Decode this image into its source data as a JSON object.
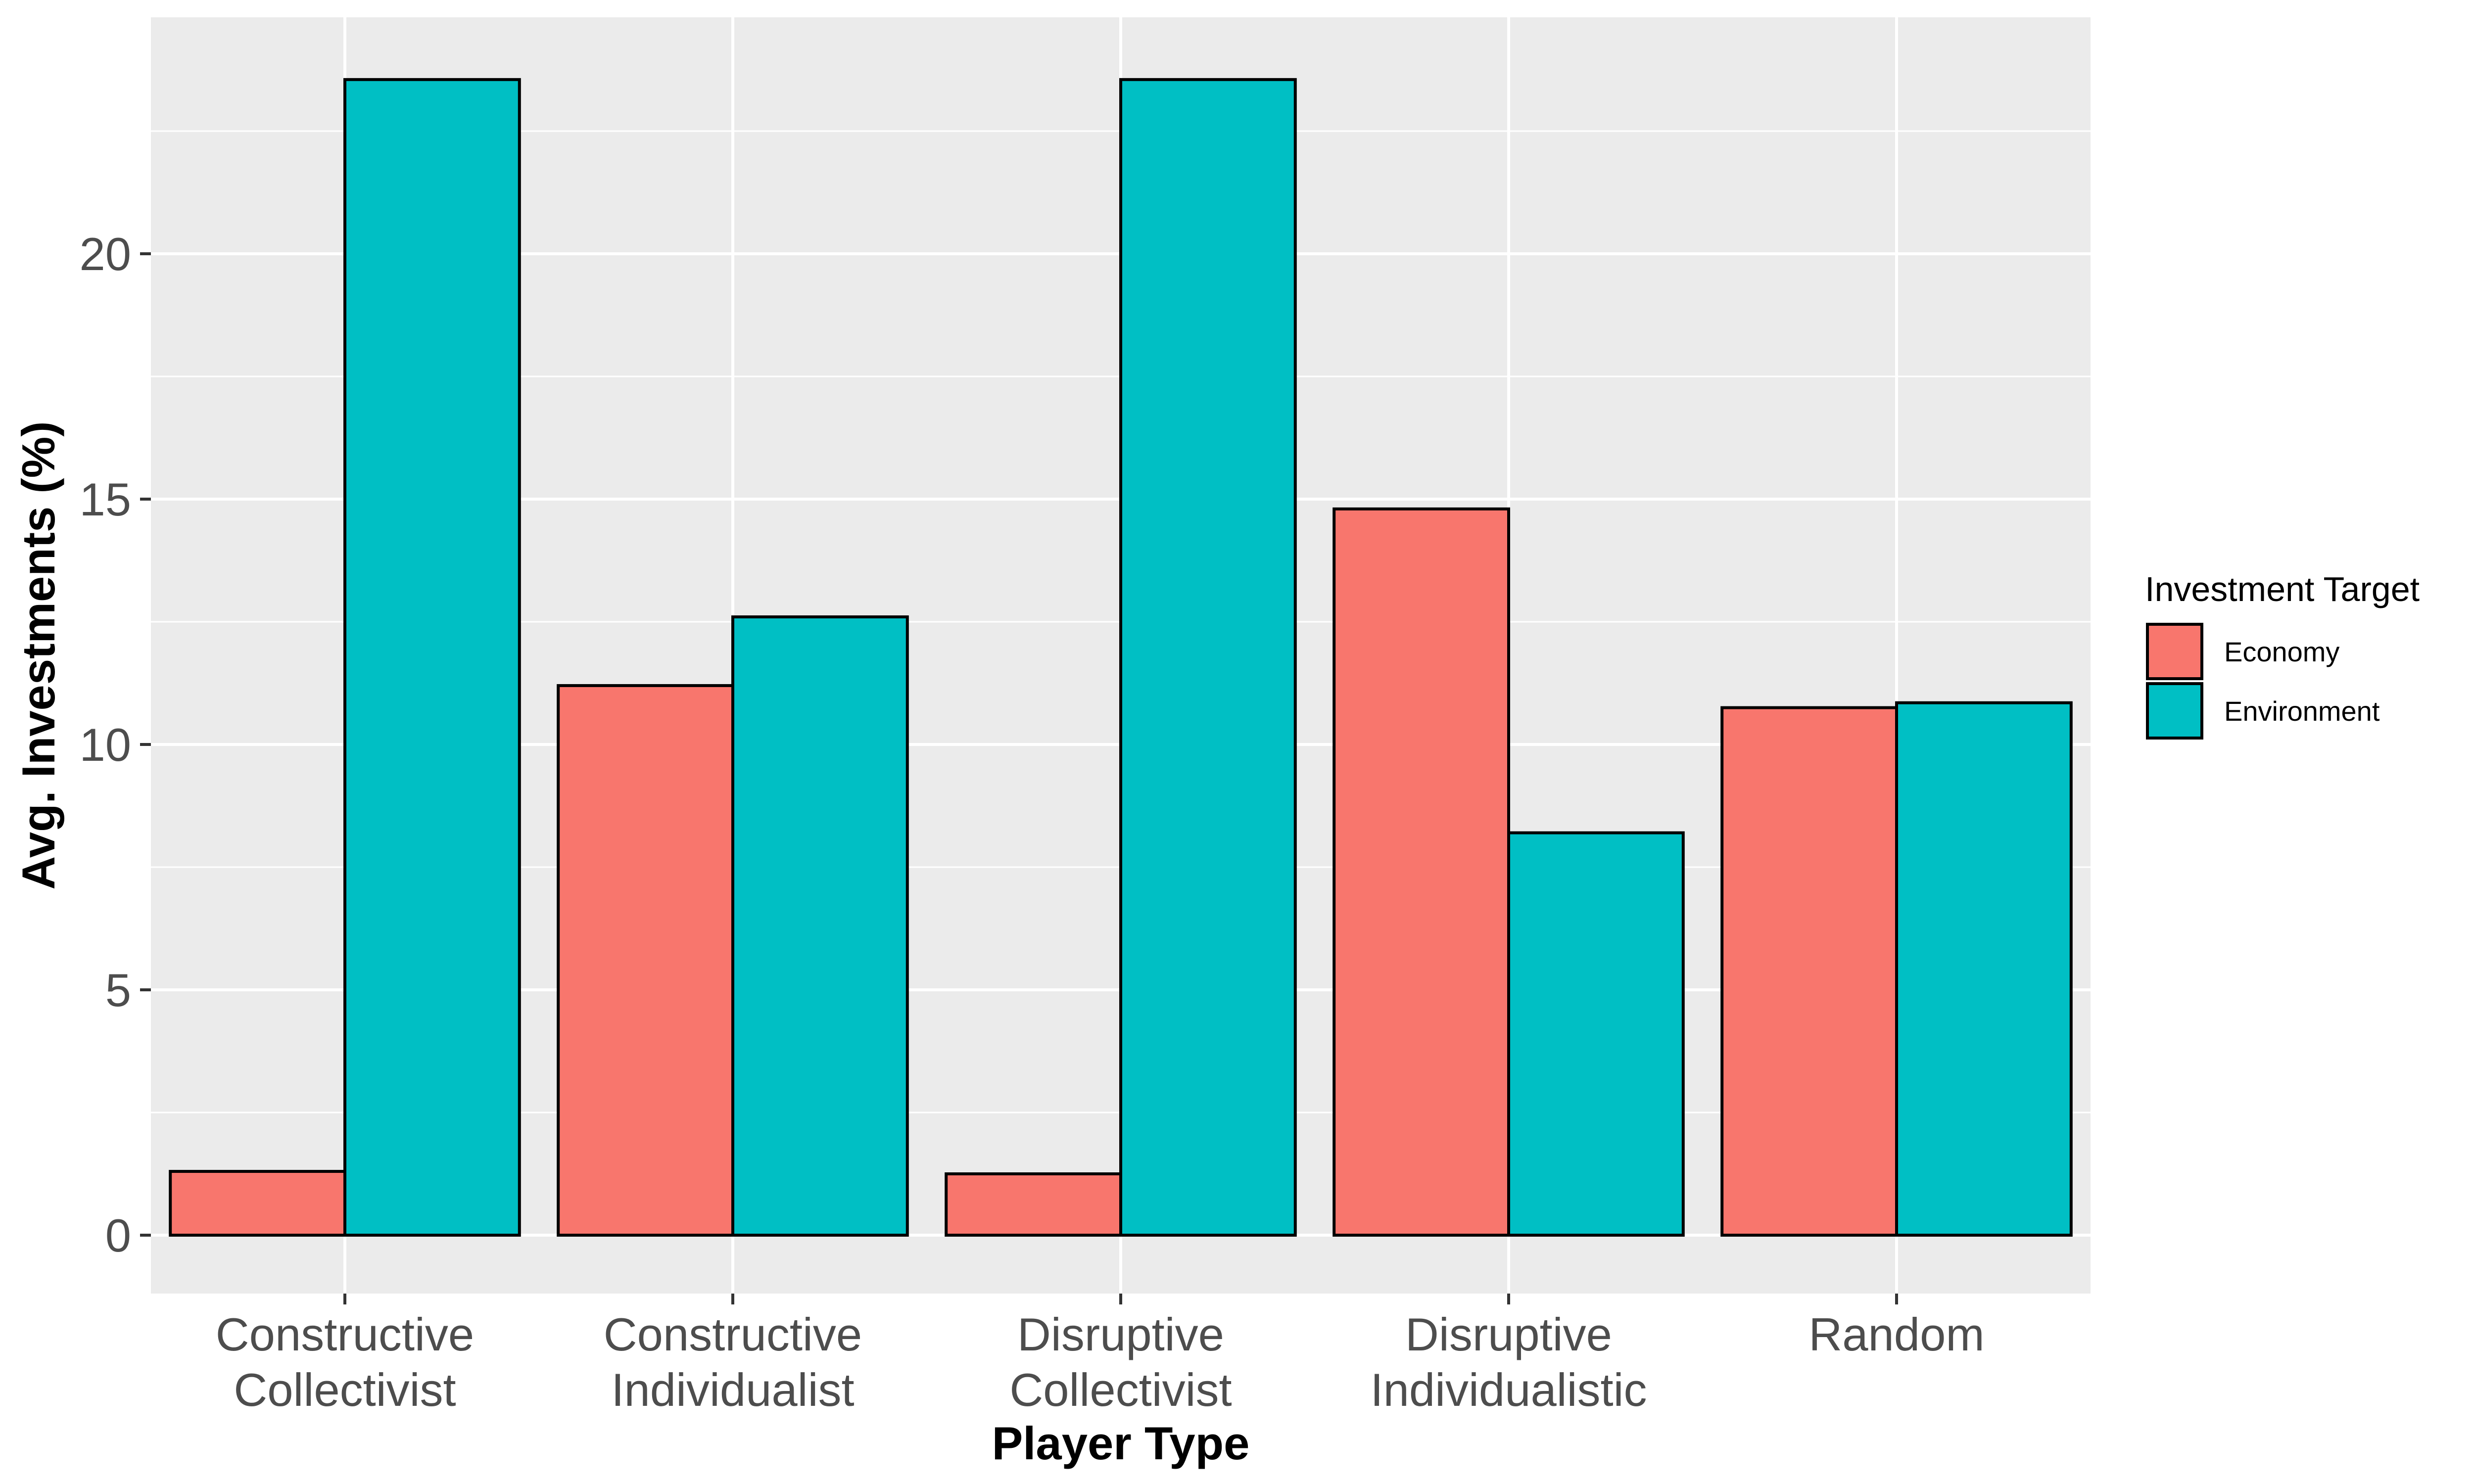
{
  "chart_data": {
    "type": "bar",
    "categories": [
      [
        "Constructive",
        "Collectivist"
      ],
      [
        "Constructive",
        "Individualist"
      ],
      [
        "Disruptive",
        "Collectivist"
      ],
      [
        "Disruptive",
        "Individualistic"
      ],
      [
        "Random"
      ]
    ],
    "series": [
      {
        "name": "Economy",
        "color": "#F8766D",
        "values": [
          1.3,
          11.2,
          1.25,
          14.8,
          10.75
        ]
      },
      {
        "name": "Environment",
        "color": "#00BFC4",
        "values": [
          23.55,
          12.6,
          23.55,
          8.2,
          10.85
        ]
      }
    ],
    "xlabel": "Player Type",
    "ylabel": "Avg. Investments (%)",
    "ylim": [
      -1.2,
      25.0
    ],
    "yticks": [
      0,
      5,
      10,
      15,
      20
    ],
    "legend": {
      "title": "Investment Target",
      "position": "right"
    },
    "grid": true,
    "panel_background": "#EBEBEB",
    "grid_color": "#FFFFFF"
  }
}
